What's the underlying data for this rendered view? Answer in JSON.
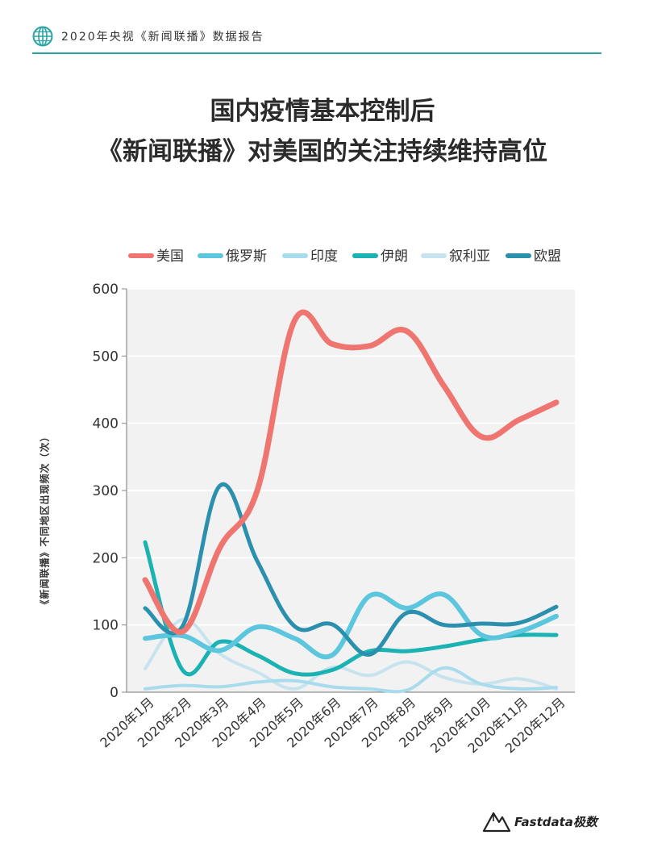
{
  "header": {
    "text": "2020年央视《新闻联播》数据报告"
  },
  "title": {
    "line1": "国内疫情基本控制后",
    "line2": "《新闻联播》对美国的关注持续维持高位"
  },
  "chart_data": {
    "type": "line",
    "ylabel": "《新闻联播》不同地区出现频次（次）",
    "xlabel": "",
    "ylim": [
      0,
      600
    ],
    "yticks": [
      0,
      100,
      200,
      300,
      400,
      500,
      600
    ],
    "categories": [
      "2020年1月",
      "2020年2月",
      "2020年3月",
      "2020年4月",
      "2020年5月",
      "2020年6月",
      "2020年7月",
      "2020年8月",
      "2020年9月",
      "2020年10月",
      "2020年11月",
      "2020年12月"
    ],
    "legend_position": "top",
    "grid": true,
    "series": [
      {
        "name": "美国",
        "color": "#ee7570",
        "width": 7,
        "values": [
          167,
          90,
          215,
          300,
          553,
          518,
          515,
          537,
          455,
          380,
          405,
          431
        ]
      },
      {
        "name": "俄罗斯",
        "color": "#5bc6de",
        "width": 6,
        "values": [
          80,
          84,
          62,
          97,
          80,
          55,
          143,
          125,
          145,
          85,
          90,
          113
        ]
      },
      {
        "name": "印度",
        "color": "#a8dcec",
        "width": 4,
        "values": [
          5,
          10,
          8,
          15,
          17,
          8,
          5,
          3,
          36,
          12,
          5,
          7
        ]
      },
      {
        "name": "伊朗",
        "color": "#1ab2b2",
        "width": 5,
        "values": [
          223,
          33,
          75,
          55,
          28,
          33,
          61,
          61,
          68,
          78,
          85,
          85
        ]
      },
      {
        "name": "叙利亚",
        "color": "#c6e3ee",
        "width": 4,
        "values": [
          35,
          108,
          57,
          30,
          5,
          37,
          25,
          45,
          22,
          12,
          20,
          5
        ]
      },
      {
        "name": "欧盟",
        "color": "#2b8fae",
        "width": 5,
        "values": [
          125,
          98,
          307,
          195,
          98,
          101,
          56,
          118,
          100,
          102,
          103,
          127
        ]
      }
    ]
  },
  "logo": {
    "text": "Fastdata极数"
  }
}
